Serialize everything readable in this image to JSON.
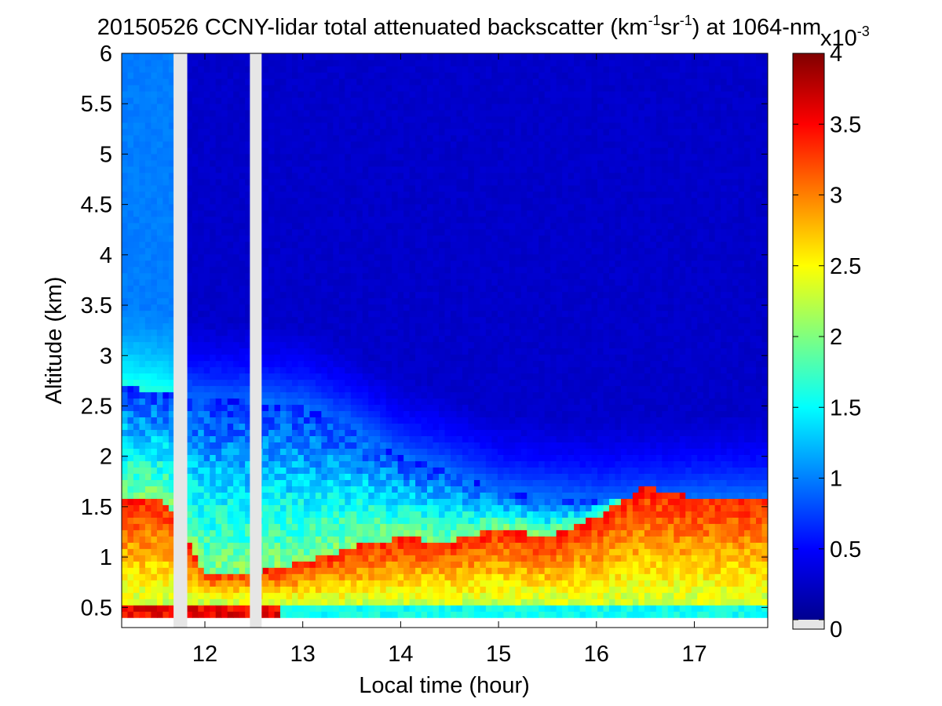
{
  "chart_data": {
    "type": "heatmap",
    "title_main": "20150526 CCNY-lidar total attenuated backscatter (km",
    "title_sup1": "-1",
    "title_mid": "sr",
    "title_sup2": "-1",
    "title_end": ") at 1064-nm",
    "xlabel": "Local time (hour)",
    "ylabel": "Altitude (km)",
    "xlim": [
      11.15,
      17.75
    ],
    "ylim": [
      0.3,
      6
    ],
    "xticks": [
      12,
      13,
      14,
      15,
      16,
      17
    ],
    "xtick_labels": [
      "12",
      "13",
      "14",
      "15",
      "16",
      "17"
    ],
    "yticks": [
      0.5,
      1,
      1.5,
      2,
      2.5,
      3,
      3.5,
      4,
      4.5,
      5,
      5.5,
      6
    ],
    "ytick_labels": [
      "0.5",
      "1",
      "1.5",
      "2",
      "2.5",
      "3",
      "3.5",
      "4",
      "4.5",
      "5",
      "5.5",
      "6"
    ],
    "data_bottom_altitude": 0.4,
    "colorbar": {
      "range": [
        0,
        4
      ],
      "ticks": [
        0,
        0.5,
        1,
        1.5,
        2,
        2.5,
        3,
        3.5,
        4
      ],
      "tick_labels": [
        "0",
        "0.5",
        "1",
        "1.5",
        "2",
        "2.5",
        "3",
        "3.5",
        "4"
      ],
      "multiplier_base": "x10",
      "multiplier_exp": "-3",
      "colormap": "jet",
      "missing_color": "#e6e6e6"
    },
    "missing_data_gaps": [
      [
        11.68,
        11.82
      ],
      [
        12.46,
        12.58
      ]
    ],
    "layers": {
      "boundary_layer_top_km": [
        {
          "t": 11.2,
          "z": 1.6
        },
        {
          "t": 11.6,
          "z": 1.55
        },
        {
          "t": 12.0,
          "z": 0.85
        },
        {
          "t": 12.5,
          "z": 0.85
        },
        {
          "t": 13.0,
          "z": 0.95
        },
        {
          "t": 13.5,
          "z": 1.1
        },
        {
          "t": 14.0,
          "z": 1.2
        },
        {
          "t": 14.5,
          "z": 1.15
        },
        {
          "t": 15.0,
          "z": 1.3
        },
        {
          "t": 15.5,
          "z": 1.2
        },
        {
          "t": 16.0,
          "z": 1.4
        },
        {
          "t": 16.5,
          "z": 1.7
        },
        {
          "t": 17.0,
          "z": 1.6
        },
        {
          "t": 17.5,
          "z": 1.6
        }
      ],
      "residual_layer_top_km": [
        {
          "t": 11.2,
          "z": 2.7
        },
        {
          "t": 12.0,
          "z": 2.55
        },
        {
          "t": 12.5,
          "z": 2.55
        },
        {
          "t": 13.0,
          "z": 2.5
        },
        {
          "t": 13.5,
          "z": 2.3
        },
        {
          "t": 14.0,
          "z": 2.0
        },
        {
          "t": 14.5,
          "z": 1.85
        },
        {
          "t": 15.0,
          "z": 1.65
        },
        {
          "t": 16.0,
          "z": 1.55
        },
        {
          "t": 17.0,
          "z": 1.6
        },
        {
          "t": 17.7,
          "z": 1.6
        }
      ],
      "free_troposphere_value": 0.25,
      "near_surface_value": 1.4
    }
  }
}
